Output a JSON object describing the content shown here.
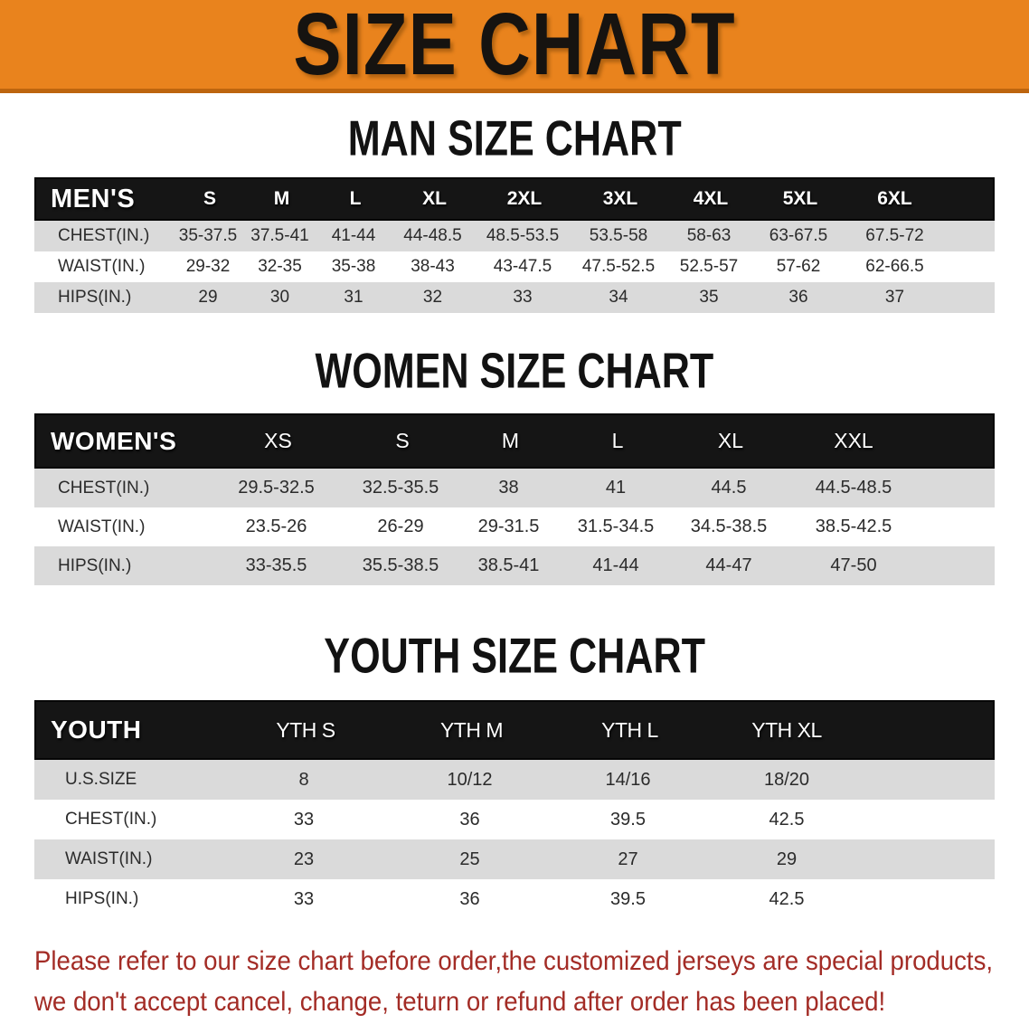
{
  "banner": {
    "title": "SIZE CHART"
  },
  "colors": {
    "banner_bg": "#E9831D",
    "banner_edge": "#BD650E",
    "table_header_bg": "#151515",
    "row_stripe": "#DADADA",
    "note_color": "#A32C26"
  },
  "sections": [
    {
      "heading": "MAN SIZE CHART",
      "table": {
        "label": "MEN'S",
        "columns": [
          "S",
          "M",
          "L",
          "XL",
          "2XL",
          "3XL",
          "4XL",
          "5XL",
          "6XL"
        ],
        "rows": [
          {
            "label": "CHEST(IN.)",
            "values": [
              "35-37.5",
              "37.5-41",
              "41-44",
              "44-48.5",
              "48.5-53.5",
              "53.5-58",
              "58-63",
              "63-67.5",
              "67.5-72"
            ]
          },
          {
            "label": "WAIST(IN.)",
            "values": [
              "29-32",
              "32-35",
              "35-38",
              "38-43",
              "43-47.5",
              "47.5-52.5",
              "52.5-57",
              "57-62",
              "62-66.5"
            ]
          },
          {
            "label": "HIPS(IN.)",
            "values": [
              "29",
              "30",
              "31",
              "32",
              "33",
              "34",
              "35",
              "36",
              "37"
            ]
          }
        ]
      }
    },
    {
      "heading": "WOMEN SIZE CHART",
      "table": {
        "label": "WOMEN'S",
        "columns": [
          "XS",
          "S",
          "M",
          "L",
          "XL",
          "XXL"
        ],
        "rows": [
          {
            "label": "CHEST(IN.)",
            "values": [
              "29.5-32.5",
              "32.5-35.5",
              "38",
              "41",
              "44.5",
              "44.5-48.5"
            ]
          },
          {
            "label": "WAIST(IN.)",
            "values": [
              "23.5-26",
              "26-29",
              "29-31.5",
              "31.5-34.5",
              "34.5-38.5",
              "38.5-42.5"
            ]
          },
          {
            "label": "HIPS(IN.)",
            "values": [
              "33-35.5",
              "35.5-38.5",
              "38.5-41",
              "41-44",
              "44-47",
              "47-50"
            ]
          }
        ]
      }
    },
    {
      "heading": "YOUTH SIZE CHART",
      "table": {
        "label": "YOUTH",
        "columns": [
          "YTH S",
          "YTH M",
          "YTH L",
          "YTH XL"
        ],
        "rows": [
          {
            "label": "U.S.SIZE",
            "values": [
              "8",
              "10/12",
              "14/16",
              "18/20"
            ]
          },
          {
            "label": "CHEST(IN.)",
            "values": [
              "33",
              "36",
              "39.5",
              "42.5"
            ]
          },
          {
            "label": "WAIST(IN.)",
            "values": [
              "23",
              "25",
              "27",
              "29"
            ]
          },
          {
            "label": "HIPS(IN.)",
            "values": [
              "33",
              "36",
              "39.5",
              "42.5"
            ]
          }
        ]
      }
    }
  ],
  "footer": {
    "line1": "Please refer to our size chart before order,the customized jerseys are special products,",
    "line2": "we don't accept cancel, change, teturn or refund after order has been placed!"
  }
}
